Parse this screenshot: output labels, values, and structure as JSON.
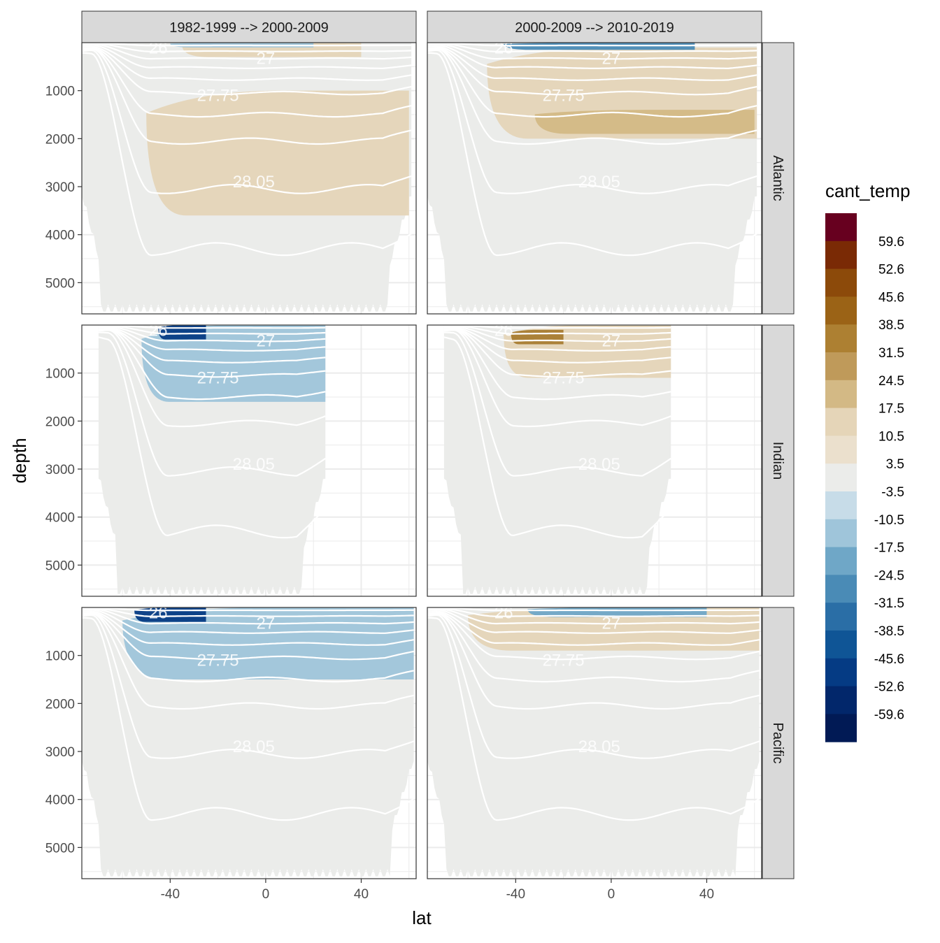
{
  "chart_data": {
    "type": "heatmap",
    "facet_columns": [
      "1982-1999 --> 2000-2009",
      "2000-2009 --> 2010-2019"
    ],
    "facet_rows": [
      "Atlantic",
      "Indian",
      "Pacific"
    ],
    "xlabel": "lat",
    "ylabel": "depth",
    "x_ticks": [
      -40,
      0,
      40
    ],
    "x_tick_labels": [
      "-40",
      "0",
      "40"
    ],
    "xlim": [
      -77,
      63
    ],
    "y_ticks": [
      1000,
      2000,
      3000,
      4000,
      5000
    ],
    "y_tick_labels": [
      "1000",
      "2000",
      "3000",
      "4000",
      "5000"
    ],
    "ylim": [
      5650,
      0
    ],
    "contour_labels": [
      "26",
      "27",
      "27.75",
      "28.05"
    ],
    "legend": {
      "title": "cant_temp",
      "labels": [
        "59.6",
        "52.6",
        "45.6",
        "38.5",
        "31.5",
        "24.5",
        "17.5",
        "10.5",
        "3.5",
        "-3.5",
        "-10.5",
        "-17.5",
        "-24.5",
        "-31.5",
        "-38.5",
        "-45.6",
        "-52.6",
        "-59.6"
      ],
      "colors": [
        "#67001f",
        "#7a2a05",
        "#8c4a0a",
        "#9b6316",
        "#ad8032",
        "#bf9a5a",
        "#d3b985",
        "#e5d5b8",
        "#ebe0cd",
        "#ebecea",
        "#c7dce8",
        "#9fc5da",
        "#6fa7c7",
        "#4a8bb6",
        "#2a6ea6",
        "#0f5596",
        "#053b84",
        "#02276b",
        "#011a55"
      ]
    },
    "panels": [
      {
        "ocean": "Atlantic",
        "period": "1982-1999 --> 2000-2009",
        "lat_range": [
          -77,
          61
        ],
        "max_depth": 5600,
        "anomalies": [
          {
            "sign": "positive",
            "lat": [
              -50,
              60
            ],
            "depth": [
              1000,
              3600
            ],
            "value": 5
          },
          {
            "sign": "positive",
            "lat": [
              -35,
              40
            ],
            "depth": [
              0,
              300
            ],
            "value": 5
          },
          {
            "sign": "negative",
            "lat": [
              -40,
              20
            ],
            "depth": [
              0,
              100
            ],
            "value": -10
          }
        ]
      },
      {
        "ocean": "Atlantic",
        "period": "2000-2009 --> 2010-2019",
        "lat_range": [
          -77,
          61
        ],
        "max_depth": 5600,
        "anomalies": [
          {
            "sign": "positive",
            "lat": [
              -52,
              61
            ],
            "depth": [
              100,
              2000
            ],
            "value": 8
          },
          {
            "sign": "positive",
            "lat": [
              -32,
              60
            ],
            "depth": [
              1400,
              1900
            ],
            "value": 15
          },
          {
            "sign": "negative",
            "lat": [
              -45,
              35
            ],
            "depth": [
              0,
              150
            ],
            "value": -25
          }
        ]
      },
      {
        "ocean": "Indian",
        "period": "1982-1999 --> 2000-2009",
        "lat_range": [
          -70,
          25
        ],
        "max_depth": 5600,
        "anomalies": [
          {
            "sign": "negative",
            "lat": [
              -52,
              25
            ],
            "depth": [
              0,
              1600
            ],
            "value": -8
          },
          {
            "sign": "negative",
            "lat": [
              -45,
              -25
            ],
            "depth": [
              0,
              300
            ],
            "value": -50
          }
        ]
      },
      {
        "ocean": "Indian",
        "period": "2000-2009 --> 2010-2019",
        "lat_range": [
          -70,
          25
        ],
        "max_depth": 5600,
        "anomalies": [
          {
            "sign": "positive",
            "lat": [
              -45,
              25
            ],
            "depth": [
              0,
              1100
            ],
            "value": 10
          },
          {
            "sign": "positive",
            "lat": [
              -42,
              -20
            ],
            "depth": [
              100,
              400
            ],
            "value": 35
          }
        ]
      },
      {
        "ocean": "Pacific",
        "period": "1982-1999 --> 2000-2009",
        "lat_range": [
          -77,
          62
        ],
        "max_depth": 5600,
        "anomalies": [
          {
            "sign": "negative",
            "lat": [
              -60,
              62
            ],
            "depth": [
              0,
              1500
            ],
            "value": -8
          },
          {
            "sign": "negative",
            "lat": [
              -55,
              -25
            ],
            "depth": [
              0,
              300
            ],
            "value": -45
          }
        ]
      },
      {
        "ocean": "Pacific",
        "period": "2000-2009 --> 2010-2019",
        "lat_range": [
          -77,
          62
        ],
        "max_depth": 5600,
        "anomalies": [
          {
            "sign": "positive",
            "lat": [
              -60,
              62
            ],
            "depth": [
              0,
              900
            ],
            "value": 10
          },
          {
            "sign": "negative",
            "lat": [
              -35,
              40
            ],
            "depth": [
              0,
              200
            ],
            "value": -20
          }
        ]
      }
    ]
  }
}
